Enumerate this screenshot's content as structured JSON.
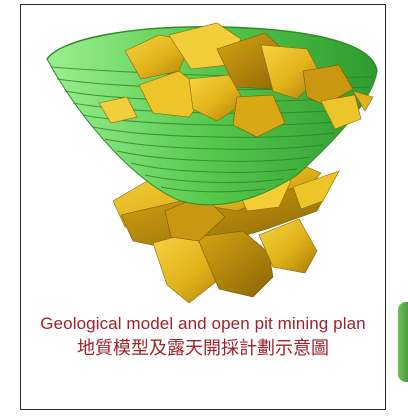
{
  "caption": {
    "english": "Geological model and open pit mining plan",
    "chinese": "地質模型及露天開採計劃示意圖"
  },
  "colors": {
    "pit_shell": "#5fcf5a",
    "ore_body": "#e1b11a",
    "caption_text": "#a0212a",
    "card_border": "#2a2a2a",
    "side_tab": "#4fa43f"
  }
}
